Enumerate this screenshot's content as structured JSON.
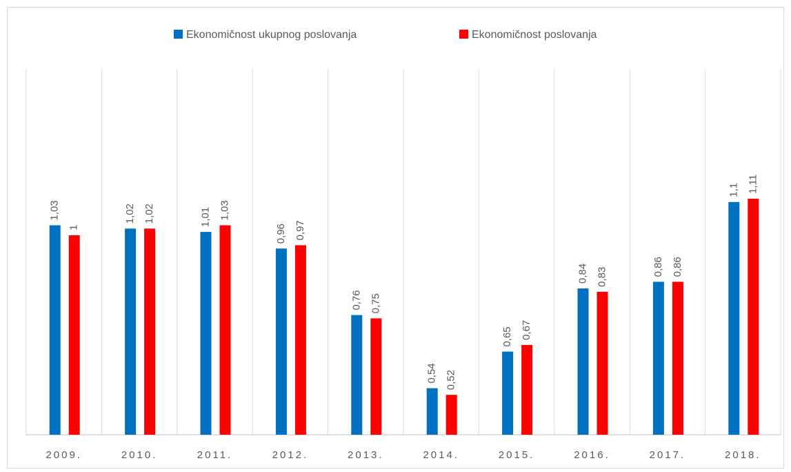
{
  "chart_data": {
    "type": "bar",
    "categories": [
      "2009.",
      "2010.",
      "2011.",
      "2012.",
      "2013.",
      "2014.",
      "2015.",
      "2016.",
      "2017.",
      "2018."
    ],
    "series": [
      {
        "name": "Ekonomičnost ukupnog poslovanja",
        "color": "#0070c0",
        "values": [
          1.03,
          1.02,
          1.01,
          0.96,
          0.76,
          0.54,
          0.65,
          0.84,
          0.86,
          1.1
        ],
        "value_labels": [
          "1,03",
          "1,02",
          "1,01",
          "0,96",
          "0,76",
          "0,54",
          "0,65",
          "0,84",
          "0,86",
          "1,1"
        ]
      },
      {
        "name": "Ekonomičnost poslovanja",
        "color": "#ff0000",
        "values": [
          1,
          1.02,
          1.03,
          0.97,
          0.75,
          0.52,
          0.67,
          0.83,
          0.86,
          1.11
        ],
        "value_labels": [
          "1",
          "1,02",
          "1,03",
          "0,97",
          "0,75",
          "0,52",
          "0,67",
          "0,83",
          "0,86",
          "1,11"
        ]
      }
    ],
    "ylim": [
      0.4,
      1.5
    ],
    "legend": "top"
  }
}
